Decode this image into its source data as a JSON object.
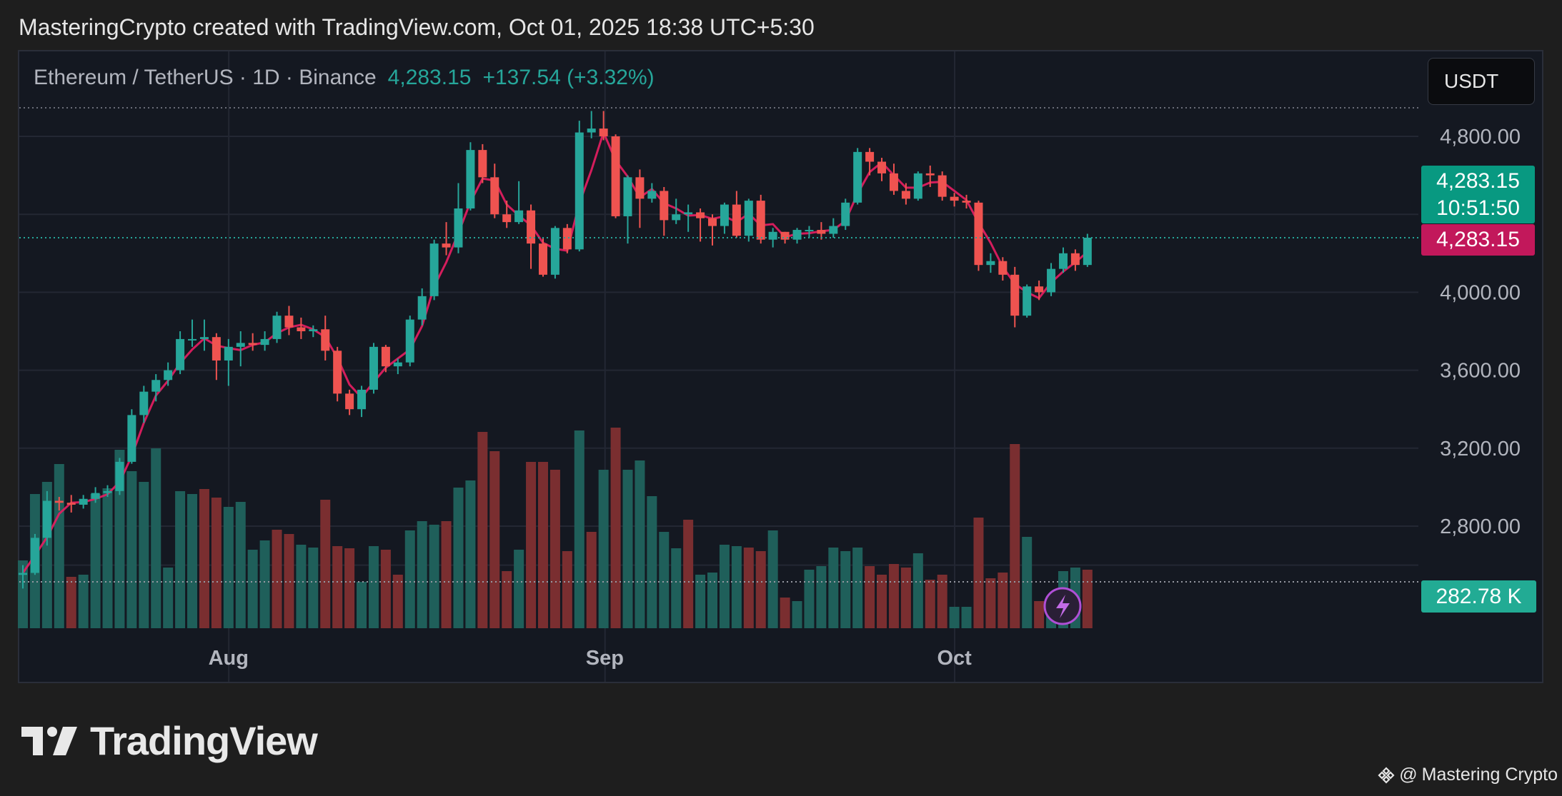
{
  "caption": "MasteringCrypto created with TradingView.com, Oct 01, 2025 18:38 UTC+5:30",
  "legend": {
    "symbol": "Ethereum / TetherUS · 1D · Binance",
    "last_price": "4,283.15",
    "change": "+137.54 (+3.32%)"
  },
  "currency_button": "USDT",
  "price_tags": {
    "last_price": "4,283.15",
    "countdown": "10:51:50",
    "mark_price": "4,283.15",
    "volume": "282.78 K"
  },
  "brand": {
    "wordmark": "TradingView"
  },
  "watermark": {
    "at": "@",
    "text": "Mastering Crypto",
    "icon": "binance-diamond-icon"
  },
  "colors": {
    "up": "#26a69a",
    "down": "#ef5350",
    "ma_line": "#e91e63",
    "background": "#141821",
    "grid": "#232733"
  },
  "chart_data": {
    "type": "candlestick",
    "title": "Ethereum / TetherUS · 1D · Binance",
    "y_axis": {
      "ticks": [
        4800,
        4400,
        4000,
        3600,
        3200,
        2800
      ],
      "tick_labels": [
        "4,800.00",
        "",
        "4,000.00",
        "3,600.00",
        "3,200.00",
        "2,800.00"
      ],
      "range": [
        2540,
        4960
      ],
      "position": "right"
    },
    "x_axis": {
      "tick_labels": [
        "Aug",
        "Sep",
        "Oct"
      ]
    },
    "grid": true,
    "candles": [
      [
        2550,
        2560,
        2600,
        2480
      ],
      [
        2560,
        2740,
        2760,
        2550
      ],
      [
        2740,
        2930,
        2980,
        2700
      ],
      [
        2930,
        2920,
        2950,
        2880
      ],
      [
        2920,
        2910,
        2960,
        2870
      ],
      [
        2910,
        2940,
        2960,
        2890
      ],
      [
        2940,
        2970,
        3000,
        2920
      ],
      [
        2970,
        2980,
        3010,
        2950
      ],
      [
        2980,
        3130,
        3150,
        2960
      ],
      [
        3130,
        3370,
        3400,
        3120
      ],
      [
        3370,
        3490,
        3520,
        3330
      ],
      [
        3490,
        3550,
        3580,
        3440
      ],
      [
        3550,
        3600,
        3640,
        3520
      ],
      [
        3600,
        3760,
        3800,
        3580
      ],
      [
        3760,
        3760,
        3860,
        3720
      ],
      [
        3760,
        3770,
        3860,
        3700
      ],
      [
        3770,
        3650,
        3790,
        3550
      ],
      [
        3650,
        3720,
        3760,
        3520
      ],
      [
        3720,
        3740,
        3800,
        3620
      ],
      [
        3740,
        3730,
        3790,
        3700
      ],
      [
        3730,
        3760,
        3800,
        3700
      ],
      [
        3760,
        3880,
        3900,
        3740
      ],
      [
        3880,
        3820,
        3930,
        3780
      ],
      [
        3820,
        3800,
        3870,
        3760
      ],
      [
        3800,
        3810,
        3830,
        3770
      ],
      [
        3810,
        3700,
        3880,
        3650
      ],
      [
        3700,
        3480,
        3720,
        3440
      ],
      [
        3480,
        3400,
        3500,
        3370
      ],
      [
        3400,
        3500,
        3520,
        3360
      ],
      [
        3500,
        3720,
        3740,
        3480
      ],
      [
        3720,
        3620,
        3730,
        3590
      ],
      [
        3620,
        3640,
        3660,
        3580
      ],
      [
        3640,
        3860,
        3880,
        3620
      ],
      [
        3860,
        3980,
        4020,
        3830
      ],
      [
        3980,
        4250,
        4270,
        3960
      ],
      [
        4250,
        4230,
        4360,
        4190
      ],
      [
        4230,
        4430,
        4560,
        4200
      ],
      [
        4430,
        4730,
        4770,
        4420
      ],
      [
        4730,
        4590,
        4760,
        4560
      ],
      [
        4590,
        4400,
        4660,
        4380
      ],
      [
        4400,
        4360,
        4470,
        4330
      ],
      [
        4360,
        4420,
        4570,
        4350
      ],
      [
        4420,
        4250,
        4450,
        4120
      ],
      [
        4250,
        4090,
        4280,
        4080
      ],
      [
        4090,
        4330,
        4340,
        4070
      ],
      [
        4330,
        4220,
        4350,
        4200
      ],
      [
        4220,
        4820,
        4880,
        4210
      ],
      [
        4820,
        4840,
        4930,
        4790
      ],
      [
        4840,
        4800,
        4930,
        4780
      ],
      [
        4800,
        4390,
        4810,
        4380
      ],
      [
        4390,
        4590,
        4600,
        4250
      ],
      [
        4590,
        4480,
        4630,
        4330
      ],
      [
        4480,
        4520,
        4560,
        4460
      ],
      [
        4520,
        4370,
        4540,
        4290
      ],
      [
        4370,
        4400,
        4480,
        4350
      ],
      [
        4400,
        4410,
        4450,
        4310
      ],
      [
        4410,
        4380,
        4430,
        4260
      ],
      [
        4380,
        4340,
        4400,
        4240
      ],
      [
        4340,
        4450,
        4460,
        4300
      ],
      [
        4450,
        4290,
        4520,
        4280
      ],
      [
        4290,
        4470,
        4480,
        4260
      ],
      [
        4470,
        4270,
        4500,
        4250
      ],
      [
        4270,
        4310,
        4330,
        4230
      ],
      [
        4310,
        4270,
        4310,
        4250
      ],
      [
        4270,
        4320,
        4330,
        4250
      ],
      [
        4320,
        4320,
        4340,
        4280
      ],
      [
        4320,
        4300,
        4360,
        4270
      ],
      [
        4300,
        4340,
        4380,
        4280
      ],
      [
        4340,
        4460,
        4480,
        4320
      ],
      [
        4460,
        4720,
        4740,
        4450
      ],
      [
        4720,
        4670,
        4740,
        4600
      ],
      [
        4670,
        4610,
        4690,
        4570
      ],
      [
        4610,
        4520,
        4660,
        4500
      ],
      [
        4520,
        4480,
        4560,
        4450
      ],
      [
        4480,
        4610,
        4620,
        4470
      ],
      [
        4610,
        4600,
        4650,
        4540
      ],
      [
        4600,
        4490,
        4620,
        4470
      ],
      [
        4490,
        4470,
        4510,
        4440
      ],
      [
        4470,
        4460,
        4500,
        4430
      ],
      [
        4460,
        4140,
        4470,
        4110
      ],
      [
        4140,
        4160,
        4200,
        4100
      ],
      [
        4160,
        4090,
        4180,
        4060
      ],
      [
        4090,
        3880,
        4130,
        3820
      ],
      [
        3880,
        4030,
        4040,
        3870
      ],
      [
        4030,
        4000,
        4060,
        3960
      ],
      [
        4000,
        4120,
        4150,
        3980
      ],
      [
        4120,
        4200,
        4230,
        4100
      ],
      [
        4200,
        4140,
        4220,
        4110
      ],
      [
        4140,
        4280,
        4300,
        4130
      ]
    ],
    "volume": [
      [
        95,
        "up"
      ],
      [
        188,
        "up"
      ],
      [
        205,
        "up"
      ],
      [
        230,
        "up"
      ],
      [
        72,
        "down"
      ],
      [
        75,
        "up"
      ],
      [
        188,
        "up"
      ],
      [
        196,
        "up"
      ],
      [
        250,
        "up"
      ],
      [
        220,
        "up"
      ],
      [
        205,
        "up"
      ],
      [
        252,
        "up"
      ],
      [
        85,
        "up"
      ],
      [
        192,
        "up"
      ],
      [
        188,
        "up"
      ],
      [
        195,
        "down"
      ],
      [
        183,
        "down"
      ],
      [
        170,
        "up"
      ],
      [
        177,
        "up"
      ],
      [
        110,
        "up"
      ],
      [
        123,
        "up"
      ],
      [
        138,
        "down"
      ],
      [
        132,
        "down"
      ],
      [
        117,
        "up"
      ],
      [
        113,
        "up"
      ],
      [
        180,
        "down"
      ],
      [
        115,
        "down"
      ],
      [
        112,
        "down"
      ],
      [
        65,
        "up"
      ],
      [
        115,
        "up"
      ],
      [
        110,
        "down"
      ],
      [
        75,
        "down"
      ],
      [
        137,
        "up"
      ],
      [
        150,
        "up"
      ],
      [
        145,
        "up"
      ],
      [
        150,
        "down"
      ],
      [
        197,
        "up"
      ],
      [
        207,
        "up"
      ],
      [
        275,
        "down"
      ],
      [
        248,
        "down"
      ],
      [
        80,
        "down"
      ],
      [
        110,
        "up"
      ],
      [
        233,
        "down"
      ],
      [
        233,
        "down"
      ],
      [
        222,
        "down"
      ],
      [
        108,
        "down"
      ],
      [
        277,
        "up"
      ],
      [
        135,
        "down"
      ],
      [
        222,
        "up"
      ],
      [
        281,
        "down"
      ],
      [
        222,
        "up"
      ],
      [
        235,
        "up"
      ],
      [
        185,
        "up"
      ],
      [
        135,
        "up"
      ],
      [
        112,
        "up"
      ],
      [
        152,
        "down"
      ],
      [
        75,
        "up"
      ],
      [
        78,
        "up"
      ],
      [
        117,
        "up"
      ],
      [
        115,
        "up"
      ],
      [
        113,
        "down"
      ],
      [
        108,
        "down"
      ],
      [
        137,
        "up"
      ],
      [
        43,
        "down"
      ],
      [
        38,
        "up"
      ],
      [
        82,
        "up"
      ],
      [
        87,
        "up"
      ],
      [
        113,
        "up"
      ],
      [
        108,
        "up"
      ],
      [
        113,
        "up"
      ],
      [
        87,
        "down"
      ],
      [
        75,
        "down"
      ],
      [
        90,
        "down"
      ],
      [
        85,
        "down"
      ],
      [
        105,
        "up"
      ],
      [
        68,
        "down"
      ],
      [
        75,
        "down"
      ],
      [
        30,
        "up"
      ],
      [
        30,
        "up"
      ],
      [
        155,
        "down"
      ],
      [
        70,
        "down"
      ],
      [
        78,
        "down"
      ],
      [
        258,
        "down"
      ],
      [
        128,
        "up"
      ],
      [
        38,
        "down"
      ],
      [
        45,
        "up"
      ],
      [
        80,
        "up"
      ],
      [
        85,
        "up"
      ],
      [
        82,
        "down"
      ]
    ]
  }
}
